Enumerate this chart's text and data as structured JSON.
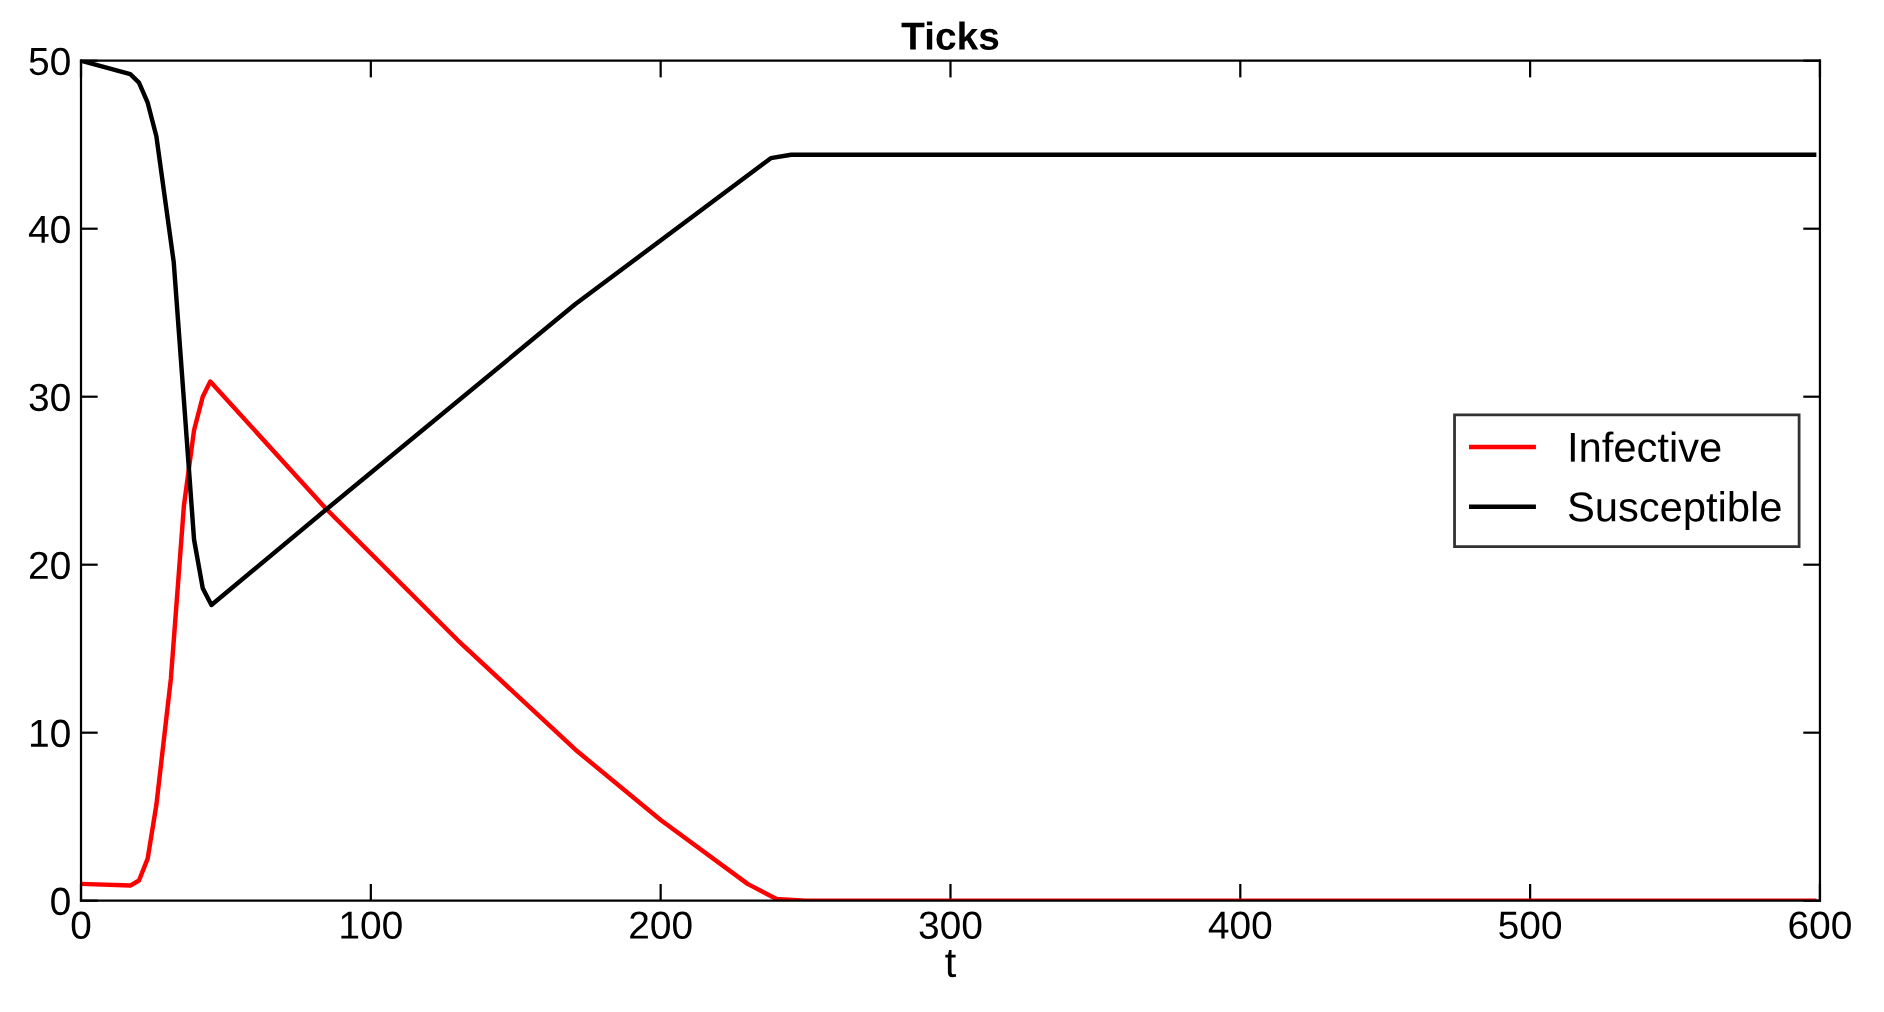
{
  "chart_data": {
    "type": "line",
    "title": "Ticks",
    "xlabel": "t",
    "xlim": [
      0,
      600
    ],
    "ylim": [
      0,
      50
    ],
    "xticks": [
      0,
      100,
      200,
      300,
      400,
      500,
      600
    ],
    "yticks": [
      0,
      10,
      20,
      30,
      40,
      50
    ],
    "legend": "right",
    "grid": false,
    "line_style": "solid",
    "marker": "none",
    "series": [
      {
        "name": "Infective",
        "color": "#ff0000",
        "x": [
          0,
          17,
          20,
          23,
          26,
          31,
          35.5,
          39,
          42,
          44.6,
          84.7,
          130,
          170.5,
          200,
          230,
          240,
          250,
          598
        ],
        "values": [
          1,
          0.9,
          1.2,
          2.5,
          5.7,
          13.2,
          23.5,
          28,
          30,
          30.9,
          23.3,
          15.5,
          9.0,
          4.8,
          1.0,
          0.1,
          0,
          0
        ]
      },
      {
        "name": "Susceptible",
        "color": "#000000",
        "x": [
          0,
          17,
          20,
          23,
          26,
          32,
          35.5,
          39,
          42,
          45,
          84.7,
          170.5,
          238,
          245,
          598
        ],
        "values": [
          50,
          49.2,
          48.7,
          47.5,
          45.5,
          38,
          29.8,
          21.5,
          18.6,
          17.6,
          23.3,
          35.5,
          44.2,
          44.4,
          44.4
        ]
      }
    ]
  }
}
